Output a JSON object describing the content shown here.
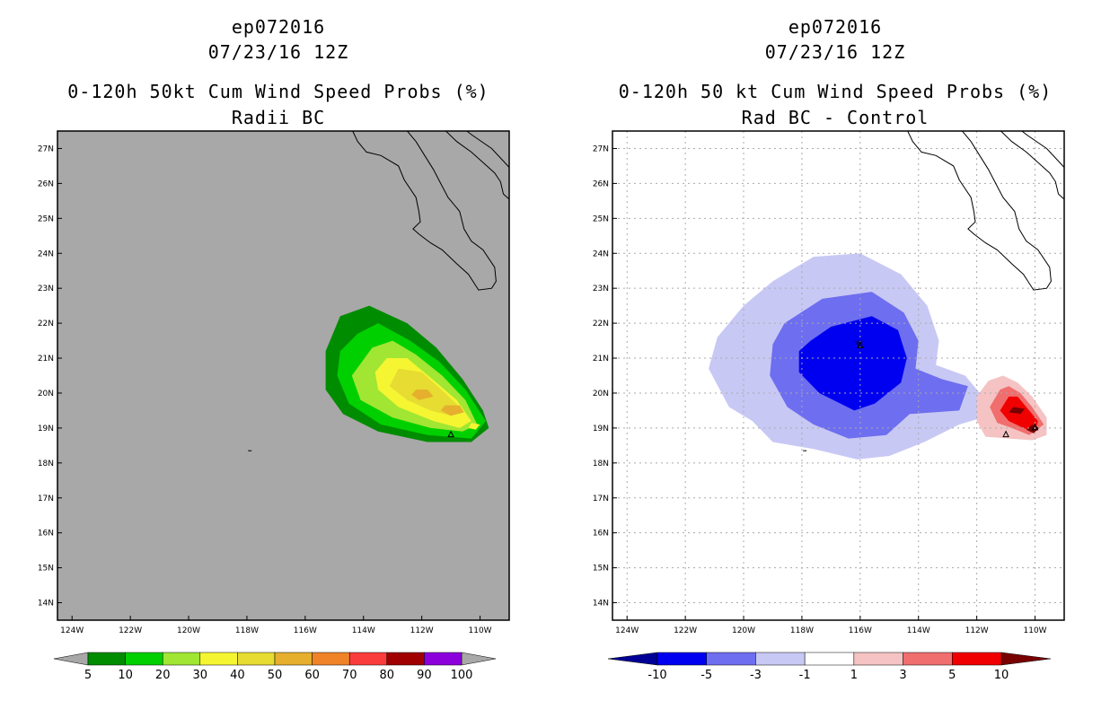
{
  "left_panel": {
    "title_lines": [
      "ep072016",
      "07/23/16 12Z",
      "0-120h 50kt Cum Wind Speed Probs (%)",
      "Radii BC"
    ]
  },
  "right_panel": {
    "title_lines": [
      "ep072016",
      "07/23/16 12Z",
      "0-120h 50 kt Cum Wind Speed Probs (%)",
      "Rad BC - Control"
    ]
  },
  "colors": {
    "left_background": "#a8a8a8",
    "right_background": "#ffffff",
    "coastline": "#000000"
  },
  "chart_data": [
    {
      "type": "heatmap",
      "name": "Radii BC cumulative probability",
      "title": "0-120h 50kt Cum Wind Speed Probs (%)",
      "subtitle": "Radii BC",
      "x_range_lon": [
        -124.5,
        -109
      ],
      "y_range_lat": [
        13.5,
        27.5
      ],
      "x_tick_labels": [
        "124W",
        "122W",
        "120W",
        "118W",
        "116W",
        "114W",
        "112W",
        "110W"
      ],
      "x_tick_values": [
        -124,
        -122,
        -120,
        -118,
        -116,
        -114,
        -112,
        -110
      ],
      "y_tick_labels": [
        "14N",
        "15N",
        "16N",
        "17N",
        "18N",
        "19N",
        "20N",
        "21N",
        "22N",
        "23N",
        "24N",
        "25N",
        "26N",
        "27N"
      ],
      "y_tick_values": [
        14,
        15,
        16,
        17,
        18,
        19,
        20,
        21,
        22,
        23,
        24,
        25,
        26,
        27
      ],
      "grid": false,
      "colorbar": {
        "labels": [
          "5",
          "10",
          "20",
          "30",
          "40",
          "50",
          "60",
          "70",
          "80",
          "90",
          "100"
        ],
        "colors": [
          "#008c00",
          "#00d000",
          "#a0e632",
          "#f5f532",
          "#e6dc32",
          "#e6af2d",
          "#f08228",
          "#fa3c3c",
          "#a00000",
          "#8c00dc"
        ]
      },
      "contours": [
        {
          "level": 5,
          "color": "#008c00",
          "ring": [
            [
              -114.8,
              22.2
            ],
            [
              -113.8,
              22.5
            ],
            [
              -112.5,
              22.0
            ],
            [
              -111.5,
              21.3
            ],
            [
              -110.6,
              20.4
            ],
            [
              -109.9,
              19.5
            ],
            [
              -109.7,
              19.0
            ],
            [
              -110.3,
              18.6
            ],
            [
              -111.8,
              18.6
            ],
            [
              -113.5,
              18.9
            ],
            [
              -114.7,
              19.4
            ],
            [
              -115.3,
              20.1
            ],
            [
              -115.3,
              21.2
            ]
          ]
        },
        {
          "level": 10,
          "color": "#00d000",
          "ring": [
            [
              -114.2,
              21.7
            ],
            [
              -113.5,
              22.0
            ],
            [
              -112.4,
              21.5
            ],
            [
              -111.4,
              20.9
            ],
            [
              -110.5,
              20.1
            ],
            [
              -109.8,
              19.2
            ],
            [
              -110.3,
              18.7
            ],
            [
              -111.8,
              18.8
            ],
            [
              -113.4,
              19.1
            ],
            [
              -114.5,
              19.7
            ],
            [
              -114.9,
              20.5
            ],
            [
              -114.8,
              21.2
            ]
          ]
        },
        {
          "level": 20,
          "color": "#a0e632",
          "ring": [
            [
              -113.7,
              21.3
            ],
            [
              -113.0,
              21.5
            ],
            [
              -112.2,
              21.1
            ],
            [
              -111.3,
              20.5
            ],
            [
              -110.5,
              19.8
            ],
            [
              -110.1,
              19.1
            ],
            [
              -110.6,
              18.9
            ],
            [
              -111.7,
              19.0
            ],
            [
              -113.0,
              19.3
            ],
            [
              -114.1,
              19.8
            ],
            [
              -114.4,
              20.5
            ]
          ]
        },
        {
          "level": 30,
          "color": "#f5f532",
          "ring": [
            [
              -113.2,
              21.0
            ],
            [
              -112.5,
              21.0
            ],
            [
              -111.5,
              20.3
            ],
            [
              -110.8,
              19.8
            ],
            [
              -110.3,
              19.2
            ],
            [
              -110.7,
              19.0
            ],
            [
              -111.6,
              19.2
            ],
            [
              -112.8,
              19.6
            ],
            [
              -113.5,
              20.1
            ],
            [
              -113.6,
              20.6
            ]
          ]
        },
        {
          "level": 30,
          "color": "#f5f532",
          "ring": [
            [
              -110.3,
              19.15
            ],
            [
              -110.0,
              19.1
            ],
            [
              -110.15,
              18.95
            ],
            [
              -110.4,
              19.0
            ]
          ]
        },
        {
          "level": 40,
          "color": "#e6dc32",
          "ring": [
            [
              -112.8,
              20.7
            ],
            [
              -112.0,
              20.6
            ],
            [
              -111.2,
              20.0
            ],
            [
              -110.7,
              19.6
            ],
            [
              -111.0,
              19.35
            ],
            [
              -111.7,
              19.5
            ],
            [
              -112.5,
              19.8
            ],
            [
              -113.1,
              20.2
            ]
          ]
        },
        {
          "level": 50,
          "color": "#e6af2d",
          "ring": [
            [
              -112.2,
              20.1
            ],
            [
              -111.8,
              20.1
            ],
            [
              -111.6,
              19.9
            ],
            [
              -112.1,
              19.8
            ],
            [
              -112.35,
              19.95
            ]
          ]
        },
        {
          "level": 50,
          "color": "#e6af2d",
          "ring": [
            [
              -111.2,
              19.65
            ],
            [
              -110.7,
              19.65
            ],
            [
              -110.55,
              19.45
            ],
            [
              -111.0,
              19.35
            ],
            [
              -111.35,
              19.5
            ]
          ]
        }
      ],
      "storm_markers": [
        [
          -111,
          18.8
        ]
      ],
      "islands": [
        [
          -117.9,
          18.35
        ]
      ]
    },
    {
      "type": "heatmap",
      "name": "Rad BC minus Control difference",
      "title": "0-120h 50 kt Cum Wind Speed Probs (%)",
      "subtitle": "Rad BC - Control",
      "x_range_lon": [
        -124.5,
        -109
      ],
      "y_range_lat": [
        13.5,
        27.5
      ],
      "x_tick_labels": [
        "124W",
        "122W",
        "120W",
        "118W",
        "116W",
        "114W",
        "112W",
        "110W"
      ],
      "x_tick_values": [
        -124,
        -122,
        -120,
        -118,
        -116,
        -114,
        -112,
        -110
      ],
      "y_tick_labels": [
        "14N",
        "15N",
        "16N",
        "17N",
        "18N",
        "19N",
        "20N",
        "21N",
        "22N",
        "23N",
        "24N",
        "25N",
        "26N",
        "27N"
      ],
      "y_tick_values": [
        14,
        15,
        16,
        17,
        18,
        19,
        20,
        21,
        22,
        23,
        24,
        25,
        26,
        27
      ],
      "grid": true,
      "colorbar": {
        "labels": [
          "-10",
          "-5",
          "-3",
          "-1",
          "1",
          "3",
          "5",
          "10"
        ],
        "colors": [
          "#000096",
          "#0000f0",
          "#6e6ef0",
          "#c8c8f5",
          "#ffffff",
          "#f5c3c3",
          "#f06e6e",
          "#f00000",
          "#780000"
        ]
      },
      "contours": [
        {
          "level": -1,
          "color": "#c8c8f5",
          "ring": [
            [
              -120.0,
              22.5
            ],
            [
              -119.0,
              23.2
            ],
            [
              -117.6,
              23.9
            ],
            [
              -116.0,
              24.0
            ],
            [
              -114.6,
              23.4
            ],
            [
              -113.7,
              22.5
            ],
            [
              -113.3,
              21.5
            ],
            [
              -113.4,
              20.8
            ],
            [
              -112.4,
              20.5
            ],
            [
              -111.7,
              19.8
            ],
            [
              -111.8,
              19.3
            ],
            [
              -112.6,
              19.1
            ],
            [
              -113.8,
              18.6
            ],
            [
              -115.0,
              18.2
            ],
            [
              -116.1,
              18.1
            ],
            [
              -117.6,
              18.4
            ],
            [
              -119.0,
              18.6
            ],
            [
              -119.7,
              19.2
            ],
            [
              -120.5,
              19.6
            ],
            [
              -121.2,
              20.7
            ],
            [
              -120.9,
              21.6
            ]
          ]
        },
        {
          "level": -3,
          "color": "#6e6ef0",
          "ring": [
            [
              -118.6,
              22.0
            ],
            [
              -117.3,
              22.7
            ],
            [
              -115.6,
              22.9
            ],
            [
              -114.5,
              22.3
            ],
            [
              -114.0,
              21.5
            ],
            [
              -114.1,
              20.7
            ],
            [
              -113.2,
              20.4
            ],
            [
              -112.3,
              20.2
            ],
            [
              -112.6,
              19.5
            ],
            [
              -114.3,
              19.4
            ],
            [
              -115.1,
              18.8
            ],
            [
              -116.4,
              18.7
            ],
            [
              -117.6,
              19.1
            ],
            [
              -118.5,
              19.6
            ],
            [
              -119.1,
              20.5
            ],
            [
              -119.0,
              21.4
            ]
          ]
        },
        {
          "level": -5,
          "color": "#0000f0",
          "ring": [
            [
              -117.7,
              21.5
            ],
            [
              -117.0,
              21.9
            ],
            [
              -115.6,
              22.2
            ],
            [
              -114.7,
              21.8
            ],
            [
              -114.4,
              21.0
            ],
            [
              -114.6,
              20.3
            ],
            [
              -115.5,
              19.7
            ],
            [
              -116.2,
              19.5
            ],
            [
              -117.4,
              20.0
            ],
            [
              -118.1,
              20.6
            ],
            [
              -118.1,
              21.2
            ]
          ]
        },
        {
          "level": -10,
          "color": "#000096",
          "ring": [
            [
              -116.2,
              21.5
            ],
            [
              -115.9,
              21.5
            ],
            [
              -116.0,
              21.25
            ]
          ]
        },
        {
          "level": 1,
          "color": "#f5c3c3",
          "ring": [
            [
              -111.6,
              20.35
            ],
            [
              -111.1,
              20.5
            ],
            [
              -110.6,
              20.3
            ],
            [
              -110.1,
              19.9
            ],
            [
              -109.6,
              19.3
            ],
            [
              -109.6,
              18.8
            ],
            [
              -110.1,
              18.65
            ],
            [
              -110.9,
              18.7
            ],
            [
              -111.7,
              18.75
            ],
            [
              -112.0,
              19.2
            ],
            [
              -112.0,
              19.9
            ]
          ]
        },
        {
          "level": 3,
          "color": "#f06e6e",
          "ring": [
            [
              -111.2,
              20.1
            ],
            [
              -110.9,
              20.2
            ],
            [
              -110.5,
              20.0
            ],
            [
              -110.1,
              19.6
            ],
            [
              -109.7,
              19.1
            ],
            [
              -110.2,
              18.8
            ],
            [
              -110.8,
              19.0
            ],
            [
              -111.3,
              19.15
            ],
            [
              -111.55,
              19.6
            ]
          ]
        },
        {
          "level": 5,
          "color": "#f00000",
          "ring": [
            [
              -110.9,
              19.9
            ],
            [
              -110.6,
              19.9
            ],
            [
              -110.3,
              19.6
            ],
            [
              -109.9,
              19.2
            ],
            [
              -110.0,
              18.9
            ],
            [
              -110.4,
              19.0
            ],
            [
              -110.9,
              19.2
            ],
            [
              -111.2,
              19.5
            ]
          ]
        },
        {
          "level": 10,
          "color": "#780000",
          "ring": [
            [
              -110.75,
              19.6
            ],
            [
              -110.35,
              19.55
            ],
            [
              -110.5,
              19.4
            ],
            [
              -110.9,
              19.45
            ]
          ]
        },
        {
          "level": 10,
          "color": "#780000",
          "ring": [
            [
              -110.1,
              19.1
            ],
            [
              -109.85,
              19.0
            ],
            [
              -110.05,
              18.85
            ],
            [
              -110.3,
              18.95
            ]
          ]
        }
      ],
      "storm_markers": [
        [
          -116,
          21.35
        ],
        [
          -111,
          18.8
        ],
        [
          -110,
          19.0
        ]
      ],
      "islands": [
        [
          -117.9,
          18.35
        ]
      ]
    }
  ],
  "coastline_lonlat": [
    [
      [
        -115.8,
        28.3
      ],
      [
        -115.6,
        27.95
      ],
      [
        -114.9,
        27.75
      ],
      [
        -114.3,
        27.9
      ],
      [
        -114.0,
        27.95
      ],
      [
        -114.4,
        27.55
      ],
      [
        -114.2,
        27.2
      ],
      [
        -113.9,
        26.9
      ],
      [
        -113.4,
        26.8
      ],
      [
        -112.8,
        26.5
      ],
      [
        -112.6,
        26.1
      ],
      [
        -112.2,
        25.6
      ],
      [
        -112.1,
        25.2
      ],
      [
        -112.05,
        24.9
      ],
      [
        -112.3,
        24.7
      ],
      [
        -112.1,
        24.55
      ],
      [
        -111.7,
        24.3
      ],
      [
        -111.3,
        24.1
      ],
      [
        -110.8,
        23.7
      ],
      [
        -110.4,
        23.4
      ],
      [
        -110.05,
        22.95
      ],
      [
        -109.6,
        23.0
      ],
      [
        -109.45,
        23.2
      ],
      [
        -109.5,
        23.6
      ],
      [
        -109.9,
        24.1
      ],
      [
        -110.3,
        24.35
      ],
      [
        -110.55,
        24.7
      ],
      [
        -110.7,
        25.2
      ],
      [
        -111.1,
        25.6
      ],
      [
        -111.35,
        26.0
      ],
      [
        -111.6,
        26.4
      ],
      [
        -111.9,
        26.8
      ],
      [
        -112.2,
        27.2
      ],
      [
        -112.6,
        27.6
      ],
      [
        -112.8,
        27.8
      ],
      [
        -113.2,
        28.0
      ]
    ],
    [
      [
        -112.3,
        27.8
      ],
      [
        -111.8,
        27.8
      ],
      [
        -111.3,
        27.6
      ],
      [
        -110.8,
        27.2
      ],
      [
        -110.3,
        26.9
      ],
      [
        -109.9,
        26.6
      ],
      [
        -109.5,
        26.3
      ],
      [
        -109.3,
        26.05
      ],
      [
        -109.2,
        25.7
      ],
      [
        -109.0,
        25.55
      ],
      [
        -108.8,
        25.85
      ],
      [
        -108.6,
        26.1
      ],
      [
        -109.1,
        26.55
      ],
      [
        -109.6,
        27.0
      ],
      [
        -110.3,
        27.4
      ],
      [
        -110.9,
        27.8
      ]
    ]
  ]
}
